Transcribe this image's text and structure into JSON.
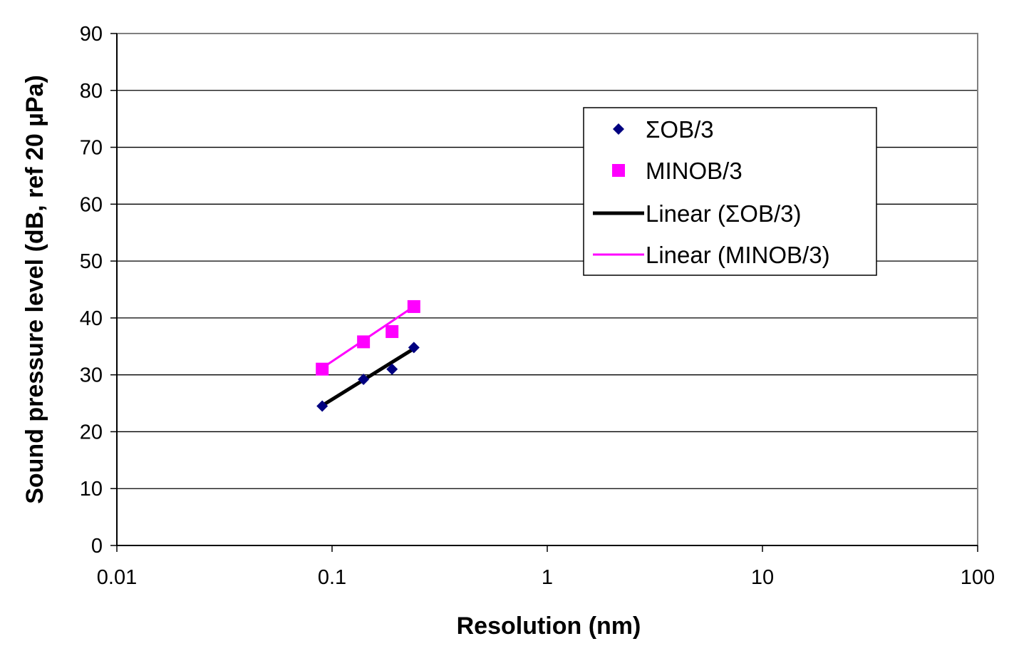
{
  "chart_data": {
    "type": "scatter",
    "title": "",
    "xlabel": "Resolution (nm)",
    "ylabel": "Sound pressure level (dB, ref 20 µPa)",
    "x_scale": "log",
    "xlim": [
      0.01,
      100
    ],
    "ylim": [
      0,
      90
    ],
    "x_ticks": [
      0.01,
      0.1,
      1,
      10,
      100
    ],
    "x_tick_labels": [
      "0.01",
      "0.1",
      "1",
      "10",
      "100"
    ],
    "y_ticks": [
      0,
      10,
      20,
      30,
      40,
      50,
      60,
      70,
      80,
      90
    ],
    "y_tick_labels": [
      "0",
      "10",
      "20",
      "30",
      "40",
      "50",
      "60",
      "70",
      "80",
      "90"
    ],
    "grid": "horizontal",
    "legend_position": "right",
    "series": [
      {
        "name": "ΣOB/3",
        "marker": "diamond",
        "color": "#000080",
        "x": [
          0.09,
          0.14,
          0.19,
          0.24
        ],
        "y": [
          24.5,
          29.2,
          31.0,
          34.8
        ]
      },
      {
        "name": "MINOB/3",
        "marker": "square",
        "color": "#FF00FF",
        "x": [
          0.09,
          0.14,
          0.19,
          0.24
        ],
        "y": [
          31.0,
          35.8,
          37.6,
          42.0
        ]
      }
    ],
    "trendlines": [
      {
        "name": "Linear (ΣOB/3)",
        "color": "#000000",
        "x": [
          0.09,
          0.24
        ],
        "y": [
          24.6,
          34.6
        ]
      },
      {
        "name": "Linear (MINOB/3)",
        "color": "#FF00FF",
        "x": [
          0.09,
          0.24
        ],
        "y": [
          31.2,
          42.0
        ]
      }
    ]
  }
}
